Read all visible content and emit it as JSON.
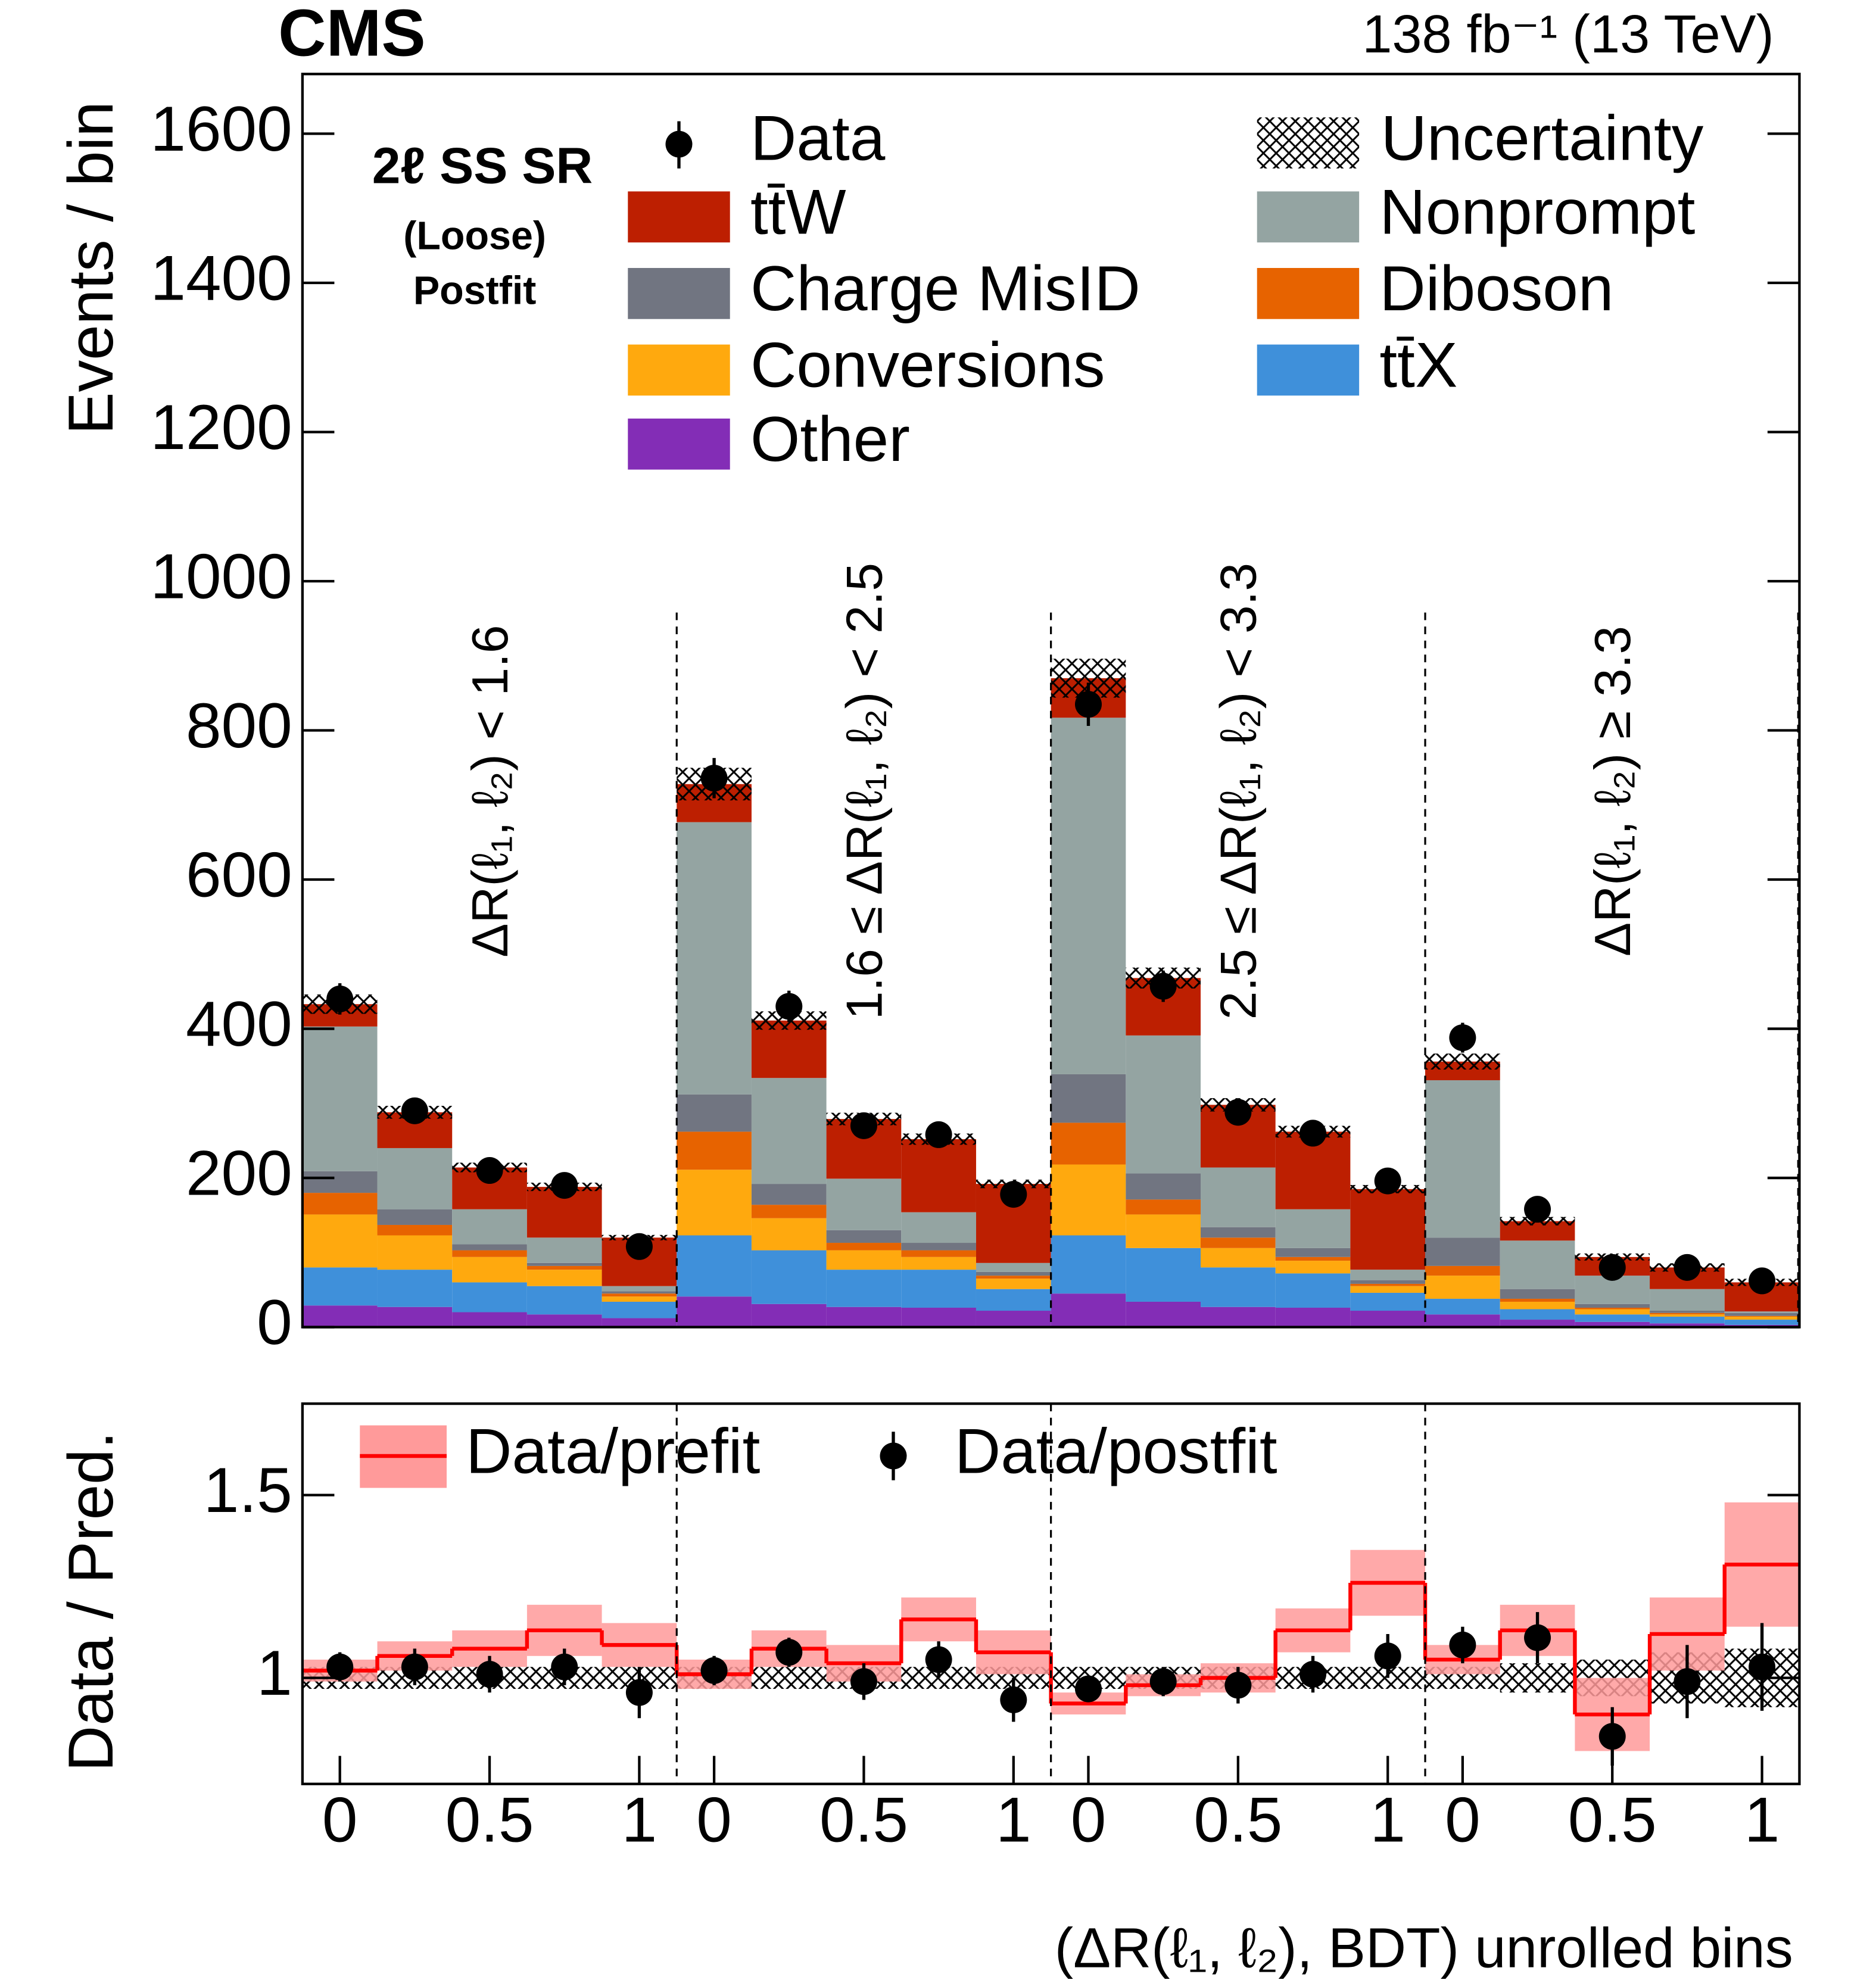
{
  "chart_data": [
    {
      "type": "bar",
      "stacked": true,
      "experiment": "CMS",
      "lumi_label": "138 fb⁻¹ (13 TeV)",
      "region_title": "2ℓ SS SR",
      "region_subtitle": "(Loose)",
      "fit_label": "Postfit",
      "ylabel": "Events / bin",
      "ylim": [
        0,
        1680
      ],
      "yticks": [
        0,
        200,
        400,
        600,
        800,
        1000,
        1200,
        1400,
        1600
      ],
      "regions": [
        "ΔR(ℓ₁, ℓ₂) < 1.6",
        "1.6 ≤ ΔR(ℓ₁, ℓ₂) < 2.5",
        "2.5 ≤ ΔR(ℓ₁, ℓ₂) < 3.3",
        "ΔR(ℓ₁, ℓ₂) ≥ 3.3"
      ],
      "uncertainty_label": "Uncertainty",
      "series": [
        {
          "name": "Other",
          "color": "#832db6",
          "values": [
            29,
            27,
            20,
            17,
            12,
            41,
            31,
            27,
            26,
            22,
            45,
            34,
            27,
            26,
            22,
            17,
            10,
            7,
            5,
            3
          ]
        },
        {
          "name": "tt̄X",
          "color": "#3f90da",
          "values": [
            51,
            50,
            40,
            38,
            22,
            82,
            72,
            50,
            51,
            29,
            78,
            72,
            53,
            46,
            24,
            21,
            14,
            10,
            9,
            7
          ]
        },
        {
          "name": "Conversions",
          "color": "#ffa90e",
          "values": [
            71,
            46,
            34,
            22,
            7,
            88,
            43,
            26,
            17,
            14,
            95,
            45,
            26,
            17,
            9,
            31,
            10,
            7,
            3,
            4
          ]
        },
        {
          "name": "Diboson",
          "color": "#e76300",
          "values": [
            29,
            14,
            9,
            5,
            4,
            51,
            18,
            10,
            9,
            4,
            56,
            20,
            14,
            5,
            3,
            13,
            4,
            2,
            2,
            1
          ]
        },
        {
          "name": "Charge MisID",
          "color": "#717581",
          "values": [
            29,
            21,
            8,
            4,
            3,
            50,
            28,
            17,
            10,
            5,
            65,
            35,
            14,
            12,
            5,
            38,
            13,
            5,
            3,
            4
          ]
        },
        {
          "name": "Nonprompt",
          "color": "#94a4a2",
          "values": [
            194,
            82,
            47,
            34,
            7,
            365,
            142,
            69,
            41,
            12,
            478,
            185,
            80,
            52,
            14,
            211,
            65,
            38,
            29,
            2
          ]
        },
        {
          "name": "tt̄W",
          "color": "#bd1f01",
          "values": [
            30,
            48,
            56,
            68,
            65,
            51,
            77,
            80,
            98,
            106,
            53,
            77,
            84,
            104,
            108,
            25,
            26,
            25,
            29,
            39
          ]
        }
      ],
      "data": {
        "name": "Data",
        "values": [
          440,
          290,
          210,
          190,
          108,
          736,
          430,
          270,
          258,
          178,
          835,
          457,
          288,
          260,
          196,
          388,
          158,
          80,
          80,
          62
        ],
        "errors": [
          21,
          17,
          14,
          14,
          10,
          27,
          21,
          16,
          16,
          13,
          29,
          21,
          17,
          16,
          14,
          20,
          13,
          9,
          9,
          8
        ]
      }
    },
    {
      "type": "line",
      "ylabel": "Data / Pred.",
      "xlabel": "(ΔR(ℓ₁, ℓ₂),  BDT) unrolled bins",
      "ylim": [
        0.71,
        1.75
      ],
      "yticks": [
        1,
        1.5
      ],
      "xticks": [
        0,
        0.5,
        1
      ],
      "prefit": {
        "name": "Data/prefit",
        "color": "#ff0000",
        "band_color": "#ff9a9a",
        "values": [
          1.02,
          1.06,
          1.08,
          1.13,
          1.09,
          1.01,
          1.08,
          1.04,
          1.16,
          1.07,
          0.93,
          0.98,
          1.0,
          1.13,
          1.26,
          1.05,
          1.13,
          0.9,
          1.12,
          1.31
        ],
        "errors": [
          0.03,
          0.04,
          0.05,
          0.07,
          0.06,
          0.04,
          0.05,
          0.05,
          0.06,
          0.06,
          0.03,
          0.03,
          0.04,
          0.06,
          0.09,
          0.04,
          0.07,
          0.1,
          0.1,
          0.17
        ]
      },
      "postfit": {
        "name": "Data/postfit",
        "color": "#000000",
        "values": [
          1.03,
          1.03,
          1.01,
          1.03,
          0.96,
          1.02,
          1.07,
          0.99,
          1.05,
          0.94,
          0.97,
          0.99,
          0.98,
          1.01,
          1.06,
          1.09,
          1.11,
          0.84,
          0.99,
          1.03
        ],
        "errors": [
          0.04,
          0.05,
          0.05,
          0.05,
          0.07,
          0.04,
          0.04,
          0.05,
          0.05,
          0.06,
          0.03,
          0.04,
          0.05,
          0.05,
          0.06,
          0.05,
          0.07,
          0.08,
          0.1,
          0.12
        ]
      },
      "uncertainty": [
        0.03,
        0.03,
        0.03,
        0.03,
        0.03,
        0.03,
        0.03,
        0.03,
        0.03,
        0.03,
        0.03,
        0.03,
        0.03,
        0.03,
        0.03,
        0.03,
        0.04,
        0.05,
        0.07,
        0.08
      ]
    }
  ]
}
